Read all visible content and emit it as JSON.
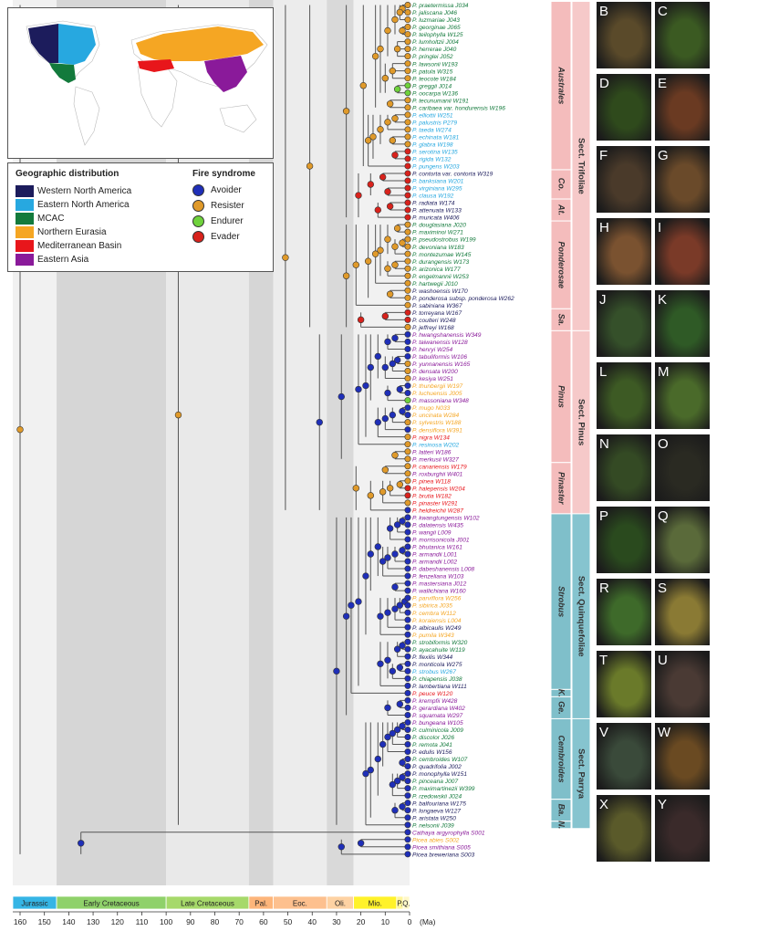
{
  "legend": {
    "geo_title": "Geographic distribution",
    "fire_title": "Fire syndrome",
    "geo": [
      {
        "label": "Western North America",
        "color": "#1c1c5c"
      },
      {
        "label": "Eastern North America",
        "color": "#27a8e0"
      },
      {
        "label": "MCAC",
        "color": "#137a3c"
      },
      {
        "label": "Northern Eurasia",
        "color": "#f5a623"
      },
      {
        "label": "Mediterranean Basin",
        "color": "#e8161b"
      },
      {
        "label": "Eastern Asia",
        "color": "#8a1a9a"
      }
    ],
    "fire": [
      {
        "label": "Avoider",
        "color": "#1f2fb8"
      },
      {
        "label": "Resister",
        "color": "#e09a2a"
      },
      {
        "label": "Endurer",
        "color": "#6fd23c"
      },
      {
        "label": "Evader",
        "color": "#d8221c"
      }
    ]
  },
  "taxa": [
    {
      "label": "P. praetermissa J034",
      "geo": 2,
      "fire": 1
    },
    {
      "label": "P. jaliscana J046",
      "geo": 2,
      "fire": 1
    },
    {
      "label": "P. luzmariae J043",
      "geo": 2,
      "fire": 1
    },
    {
      "label": "P. georginae J065",
      "geo": 2,
      "fire": 1
    },
    {
      "label": "P. teilophylla W125",
      "geo": 2,
      "fire": 1
    },
    {
      "label": "P. lumholtzii J004",
      "geo": 2,
      "fire": 1
    },
    {
      "label": "P. herrerae J040",
      "geo": 2,
      "fire": 1
    },
    {
      "label": "P. pringlei J052",
      "geo": 2,
      "fire": 1
    },
    {
      "label": "P. lawsonii W193",
      "geo": 2,
      "fire": 1
    },
    {
      "label": "P. patula W315",
      "geo": 2,
      "fire": 1
    },
    {
      "label": "P. teocote W184",
      "geo": 2,
      "fire": 1
    },
    {
      "label": "P. greggii J014",
      "geo": 2,
      "fire": 2
    },
    {
      "label": "P. oocarpa W136",
      "geo": 2,
      "fire": 2
    },
    {
      "label": "P. tecunumanii W191",
      "geo": 2,
      "fire": 1
    },
    {
      "label": "P. caribaea var. hondurensis W196",
      "geo": 2,
      "fire": 1
    },
    {
      "label": "P. elliottii W251",
      "geo": 1,
      "fire": 1
    },
    {
      "label": "P. palustris P279",
      "geo": 1,
      "fire": 1
    },
    {
      "label": "P. taeda W274",
      "geo": 1,
      "fire": 1
    },
    {
      "label": "P. echinata W181",
      "geo": 1,
      "fire": 1
    },
    {
      "label": "P. glabra W198",
      "geo": 1,
      "fire": 1
    },
    {
      "label": "P. serotina W135",
      "geo": 1,
      "fire": 3
    },
    {
      "label": "P. rigida W132",
      "geo": 1,
      "fire": 3
    },
    {
      "label": "P. pungens W203",
      "geo": 1,
      "fire": 3
    },
    {
      "label": "P. contorta var. contorta W319",
      "geo": 0,
      "fire": 3
    },
    {
      "label": "P. banksiana W201",
      "geo": 1,
      "fire": 3
    },
    {
      "label": "P. virginiana W295",
      "geo": 1,
      "fire": 3
    },
    {
      "label": "P. clausa W192",
      "geo": 1,
      "fire": 3
    },
    {
      "label": "P. radiata W174",
      "geo": 0,
      "fire": 3
    },
    {
      "label": "P. attenuata W133",
      "geo": 0,
      "fire": 3
    },
    {
      "label": "P. muricata W406",
      "geo": 0,
      "fire": 3
    },
    {
      "label": "P. douglasiana J020",
      "geo": 2,
      "fire": 1
    },
    {
      "label": "P. maximinoi W271",
      "geo": 2,
      "fire": 1
    },
    {
      "label": "P. pseudostrobus W199",
      "geo": 2,
      "fire": 1
    },
    {
      "label": "P. devoniana W183",
      "geo": 2,
      "fire": 1
    },
    {
      "label": "P. montezumae W145",
      "geo": 2,
      "fire": 1
    },
    {
      "label": "P. durangensis W173",
      "geo": 2,
      "fire": 1
    },
    {
      "label": "P. arizonica W177",
      "geo": 2,
      "fire": 1
    },
    {
      "label": "P. engelmannii W253",
      "geo": 2,
      "fire": 1
    },
    {
      "label": "P. hartwegii J010",
      "geo": 2,
      "fire": 1
    },
    {
      "label": "P. washoensis W170",
      "geo": 0,
      "fire": 1
    },
    {
      "label": "P. ponderosa subsp. ponderosa W262",
      "geo": 0,
      "fire": 1
    },
    {
      "label": "P. sabiniana W367",
      "geo": 0,
      "fire": 1
    },
    {
      "label": "P. torreyana W167",
      "geo": 0,
      "fire": 3
    },
    {
      "label": "P. coulteri W248",
      "geo": 0,
      "fire": 3
    },
    {
      "label": "P. jeffreyi W168",
      "geo": 0,
      "fire": 1
    },
    {
      "label": "P. hwangshanensis W349",
      "geo": 5,
      "fire": 0
    },
    {
      "label": "P. taiwanensis W128",
      "geo": 5,
      "fire": 0
    },
    {
      "label": "P. henryi W254",
      "geo": 5,
      "fire": 0
    },
    {
      "label": "P. tabuliformis W106",
      "geo": 5,
      "fire": 0
    },
    {
      "label": "P. yunnanensis W165",
      "geo": 5,
      "fire": 1
    },
    {
      "label": "P. densata W200",
      "geo": 5,
      "fire": 1
    },
    {
      "label": "P. kesiya W251",
      "geo": 5,
      "fire": 1
    },
    {
      "label": "P. thunbergii W197",
      "geo": 3,
      "fire": 0
    },
    {
      "label": "P. luchuensis J005",
      "geo": 3,
      "fire": 0
    },
    {
      "label": "P. massoniana W348",
      "geo": 5,
      "fire": 2
    },
    {
      "label": "P. mugo N033",
      "geo": 3,
      "fire": 0
    },
    {
      "label": "P. uncinata W284",
      "geo": 3,
      "fire": 0
    },
    {
      "label": "P. sylvestris W188",
      "geo": 3,
      "fire": 1
    },
    {
      "label": "P. densiflora W391",
      "geo": 3,
      "fire": 0
    },
    {
      "label": "P. nigra W134",
      "geo": 4,
      "fire": 1
    },
    {
      "label": "P. resinosa W202",
      "geo": 1,
      "fire": 1
    },
    {
      "label": "P. latteri W186",
      "geo": 5,
      "fire": 1
    },
    {
      "label": "P. merkusii W327",
      "geo": 5,
      "fire": 1
    },
    {
      "label": "P. canariensis W179",
      "geo": 4,
      "fire": 1
    },
    {
      "label": "P. roxburghii W401",
      "geo": 5,
      "fire": 1
    },
    {
      "label": "P. pinea W118",
      "geo": 4,
      "fire": 1
    },
    {
      "label": "P. halepensis W204",
      "geo": 4,
      "fire": 3
    },
    {
      "label": "P. brutia W182",
      "geo": 4,
      "fire": 3
    },
    {
      "label": "P. pinaster W291",
      "geo": 4,
      "fire": 1
    },
    {
      "label": "P. heldreichii W287",
      "geo": 4,
      "fire": 0
    },
    {
      "label": "P. kwangtungensis W102",
      "geo": 5,
      "fire": 0
    },
    {
      "label": "P. dalatensis W435",
      "geo": 5,
      "fire": 0
    },
    {
      "label": "P. wangii L009",
      "geo": 5,
      "fire": 0
    },
    {
      "label": "P. morrisonicola J001",
      "geo": 5,
      "fire": 0
    },
    {
      "label": "P. bhutanica W161",
      "geo": 5,
      "fire": 0
    },
    {
      "label": "P. armandii L001",
      "geo": 5,
      "fire": 0
    },
    {
      "label": "P. armandii L002",
      "geo": 5,
      "fire": 0
    },
    {
      "label": "P. dabeshanensis L008",
      "geo": 5,
      "fire": 0
    },
    {
      "label": "P. fenzeliana W103",
      "geo": 5,
      "fire": 0
    },
    {
      "label": "P. mastersiana J012",
      "geo": 5,
      "fire": 0
    },
    {
      "label": "P. wallichiana W160",
      "geo": 5,
      "fire": 0
    },
    {
      "label": "P. parviflora W256",
      "geo": 3,
      "fire": 0
    },
    {
      "label": "P. sibirica J035",
      "geo": 3,
      "fire": 0
    },
    {
      "label": "P. cembra W112",
      "geo": 3,
      "fire": 0
    },
    {
      "label": "P. koraiensis L004",
      "geo": 3,
      "fire": 0
    },
    {
      "label": "P. albicaulis W249",
      "geo": 0,
      "fire": 0
    },
    {
      "label": "P. pumila W343",
      "geo": 3,
      "fire": 0
    },
    {
      "label": "P. strobiformis W320",
      "geo": 2,
      "fire": 0
    },
    {
      "label": "P. ayacahuite W119",
      "geo": 2,
      "fire": 0
    },
    {
      "label": "P. flexilis W344",
      "geo": 0,
      "fire": 0
    },
    {
      "label": "P. monticola W275",
      "geo": 0,
      "fire": 0
    },
    {
      "label": "P. strobus W267",
      "geo": 1,
      "fire": 0
    },
    {
      "label": "P. chiapensis J038",
      "geo": 2,
      "fire": 0
    },
    {
      "label": "P. lambertiana W111",
      "geo": 0,
      "fire": 0
    },
    {
      "label": "P. peuce W120",
      "geo": 4,
      "fire": 0
    },
    {
      "label": "P. krempfii W428",
      "geo": 5,
      "fire": 0
    },
    {
      "label": "P. gerardiana W402",
      "geo": 5,
      "fire": 0
    },
    {
      "label": "P. squamata W297",
      "geo": 5,
      "fire": 0
    },
    {
      "label": "P. bungeana W105",
      "geo": 5,
      "fire": 0
    },
    {
      "label": "P. culminicola J009",
      "geo": 2,
      "fire": 0
    },
    {
      "label": "P. discolor J026",
      "geo": 2,
      "fire": 0
    },
    {
      "label": "P. remota J041",
      "geo": 2,
      "fire": 0
    },
    {
      "label": "P. edulis W156",
      "geo": 0,
      "fire": 0
    },
    {
      "label": "P. cembroides W107",
      "geo": 2,
      "fire": 0
    },
    {
      "label": "P. quadrifolia J002",
      "geo": 0,
      "fire": 0
    },
    {
      "label": "P. monophylla W151",
      "geo": 0,
      "fire": 0
    },
    {
      "label": "P. pinceana J007",
      "geo": 2,
      "fire": 0
    },
    {
      "label": "P. maximartinezii W399",
      "geo": 2,
      "fire": 0
    },
    {
      "label": "P. rzedowskii J024",
      "geo": 2,
      "fire": 0
    },
    {
      "label": "P. balfouriana W175",
      "geo": 0,
      "fire": 0
    },
    {
      "label": "P. longaeva W127",
      "geo": 0,
      "fire": 0
    },
    {
      "label": "P. aristata W250",
      "geo": 0,
      "fire": 0
    },
    {
      "label": "P. nelsonii J039",
      "geo": 2,
      "fire": 0
    },
    {
      "label": "Cathaya argyrophylla S001",
      "geo": 5,
      "fire": 0
    },
    {
      "label": "Picea abies S002",
      "geo": 3,
      "fire": 0
    },
    {
      "label": "Picea smithiana S005",
      "geo": 5,
      "fire": 0
    },
    {
      "label": "Picea breweriana S003",
      "geo": 0,
      "fire": 0
    }
  ],
  "subsections": [
    {
      "label": "Australes",
      "color": "#f4bcbc",
      "from": 0,
      "to": 22
    },
    {
      "label": "Co.",
      "color": "#f4bcbc",
      "from": 23,
      "to": 26
    },
    {
      "label": "At.",
      "color": "#f4bcbc",
      "from": 27,
      "to": 29
    },
    {
      "label": "Ponderosae",
      "color": "#f4bcbc",
      "from": 30,
      "to": 41
    },
    {
      "label": "Sa.",
      "color": "#f4bcbc",
      "from": 42,
      "to": 44
    },
    {
      "label": "Pinus",
      "color": "#f4bcbc",
      "from": 45,
      "to": 62
    },
    {
      "label": "Pinaster",
      "color": "#f4bcbc",
      "from": 63,
      "to": 69
    },
    {
      "label": "Strobus",
      "color": "#7fbfca",
      "from": 70,
      "to": 93
    },
    {
      "label": "K.",
      "color": "#7fbfca",
      "from": 94,
      "to": 94
    },
    {
      "label": "Ge.",
      "color": "#7fbfca",
      "from": 95,
      "to": 97
    },
    {
      "label": "Cembroides",
      "color": "#7fbfca",
      "from": 98,
      "to": 108
    },
    {
      "label": "Ba.",
      "color": "#7fbfca",
      "from": 109,
      "to": 111
    },
    {
      "label": "N.",
      "color": "#7fbfca",
      "from": 112,
      "to": 112
    }
  ],
  "sections": [
    {
      "label": "Sect. Trifoliae",
      "from": 0,
      "to": 44
    },
    {
      "label": "Sect. Pinus",
      "from": 45,
      "to": 69
    },
    {
      "label": "Sect. Quinquefoliae",
      "from": 70,
      "to": 97
    },
    {
      "label": "Sect. Parrya",
      "from": 98,
      "to": 112
    }
  ],
  "timescale": {
    "unit": "(Ma)",
    "ticks": [
      160,
      150,
      140,
      130,
      120,
      110,
      100,
      90,
      80,
      70,
      60,
      50,
      40,
      30,
      20,
      10,
      0
    ],
    "periods": [
      {
        "label": "Jurassic",
        "start": 163,
        "end": 145,
        "color": "#35b5e5"
      },
      {
        "label": "Early Cretaceous",
        "start": 145,
        "end": 100,
        "color": "#8fd16a"
      },
      {
        "label": "Late Cretaceous",
        "start": 100,
        "end": 66,
        "color": "#a6d96a"
      },
      {
        "label": "Pal.",
        "start": 66,
        "end": 56,
        "color": "#fdb57a"
      },
      {
        "label": "Eoc.",
        "start": 56,
        "end": 34,
        "color": "#fdc08e"
      },
      {
        "label": "Oli.",
        "start": 34,
        "end": 23,
        "color": "#fed2a3"
      },
      {
        "label": "Mio.",
        "start": 23,
        "end": 5.3,
        "color": "#fff22a"
      },
      {
        "label": "P.",
        "start": 5.3,
        "end": 2.6,
        "color": "#fff59b"
      },
      {
        "label": "Q.",
        "start": 2.6,
        "end": 0,
        "color": "#fff8c8"
      }
    ]
  },
  "photos": [
    "B",
    "C",
    "D",
    "E",
    "F",
    "G",
    "H",
    "I",
    "J",
    "K",
    "L",
    "M",
    "N",
    "O",
    "P",
    "Q",
    "R",
    "S",
    "T",
    "U",
    "V",
    "W",
    "X",
    "Y"
  ]
}
